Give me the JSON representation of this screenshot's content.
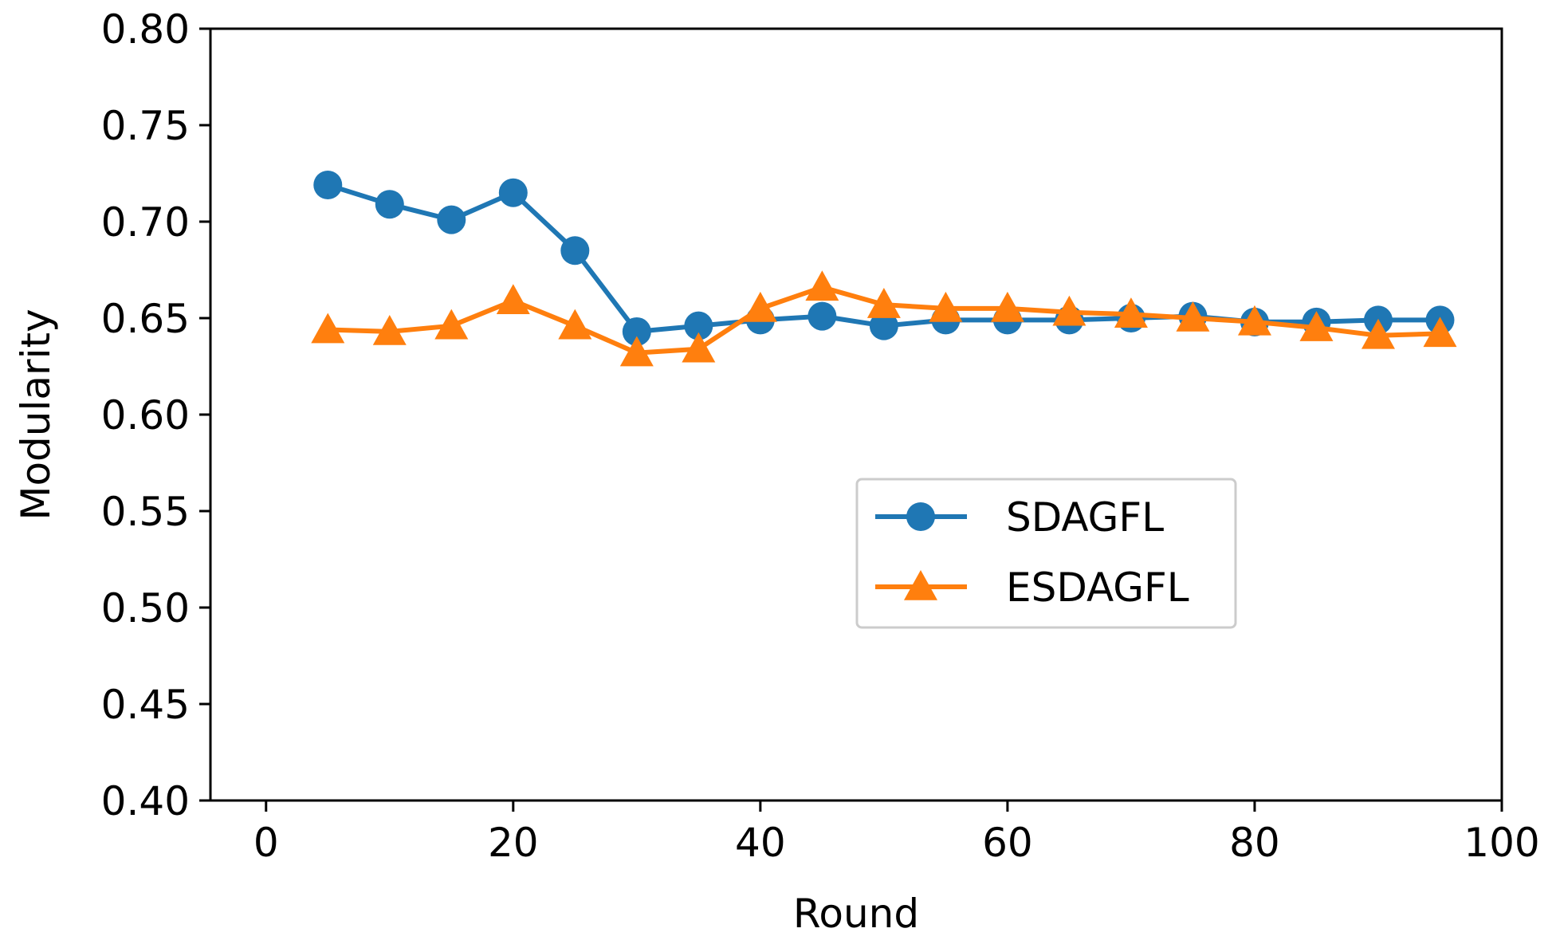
{
  "chart_data": {
    "type": "line",
    "title": "",
    "xlabel": "Round",
    "ylabel": "Modularity",
    "xlim": [
      -4.5,
      100
    ],
    "ylim": [
      0.4,
      0.8
    ],
    "xticks": [
      0,
      20,
      40,
      60,
      80,
      100
    ],
    "xtick_labels": [
      "0",
      "20",
      "40",
      "60",
      "80",
      "100"
    ],
    "yticks": [
      0.4,
      0.45,
      0.5,
      0.55,
      0.6,
      0.65,
      0.7,
      0.75,
      0.8
    ],
    "ytick_labels": [
      "0.40",
      "0.45",
      "0.50",
      "0.55",
      "0.60",
      "0.65",
      "0.70",
      "0.75",
      "0.80"
    ],
    "grid": false,
    "legend_position": "center-right",
    "x": [
      5,
      10,
      15,
      20,
      25,
      30,
      35,
      40,
      45,
      50,
      55,
      60,
      65,
      70,
      75,
      80,
      85,
      90,
      95
    ],
    "series": [
      {
        "name": "SDAGFL",
        "marker": "circle",
        "color": "#1f77b4",
        "values": [
          0.719,
          0.709,
          0.701,
          0.715,
          0.685,
          0.643,
          0.646,
          0.649,
          0.651,
          0.646,
          0.649,
          0.649,
          0.649,
          0.65,
          0.651,
          0.648,
          0.648,
          0.649,
          0.649
        ]
      },
      {
        "name": "ESDAGFL",
        "marker": "triangle",
        "color": "#ff7f0e",
        "values": [
          0.644,
          0.643,
          0.646,
          0.659,
          0.646,
          0.632,
          0.634,
          0.655,
          0.666,
          0.657,
          0.655,
          0.655,
          0.653,
          0.652,
          0.65,
          0.648,
          0.645,
          0.641,
          0.642
        ]
      }
    ]
  }
}
